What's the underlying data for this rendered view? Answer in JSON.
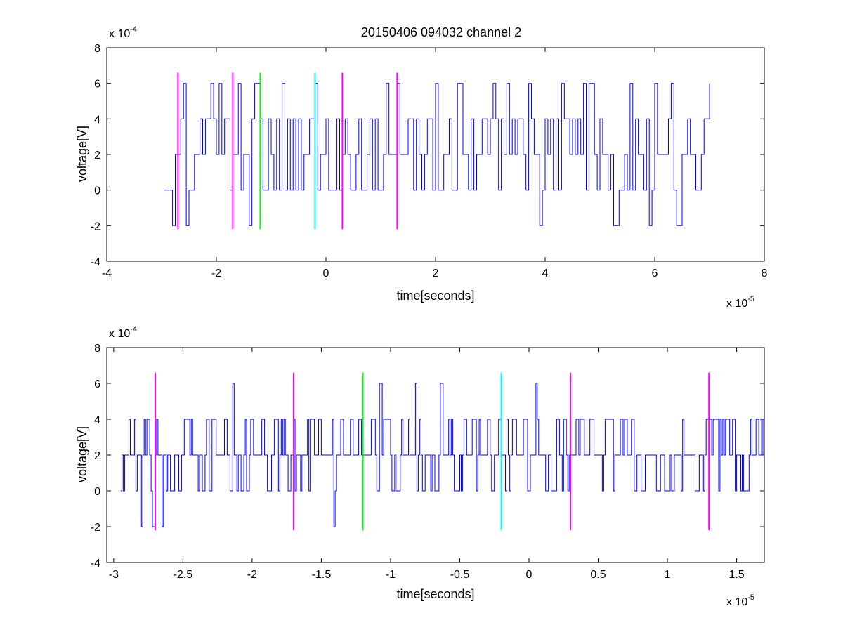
{
  "chart_data": [
    {
      "type": "line",
      "title": "20150406 094032 channel 2",
      "xlabel": "time[seconds]",
      "ylabel": "voltage[V]",
      "x_multiplier": "x 10",
      "x_exponent": "-5",
      "y_multiplier": "x 10",
      "y_exponent": "-4",
      "xlim": [
        -4,
        8
      ],
      "ylim": [
        -4,
        8
      ],
      "x_ticks": [
        "-4",
        "-2",
        "0",
        "2",
        "4",
        "6",
        "8"
      ],
      "y_ticks": [
        "-4",
        "-2",
        "0",
        "2",
        "4",
        "6",
        "8"
      ],
      "grid": false,
      "legend": "none",
      "trace_color": "#0000ff",
      "trace_start": -2.95,
      "trace_end": 7.02,
      "trace_sample_spacing": 0.05,
      "trace_levels": [
        -2,
        0,
        2,
        4,
        6
      ],
      "spikes_up": [
        -2.6,
        -2.1,
        -1.95,
        -1.62,
        -1.28,
        -0.8,
        -0.2,
        1.1,
        1.3,
        2.0,
        2.42,
        3.05,
        3.3,
        3.68,
        4.3,
        4.68,
        4.82,
        5.55,
        6.0,
        6.3,
        7.02
      ],
      "spikes_down": [
        -2.8,
        -2.58,
        -1.4,
        3.9,
        5.27,
        5.88,
        6.42
      ],
      "markers": [
        {
          "x": -2.7,
          "color": "#ff00ff"
        },
        {
          "x": -1.7,
          "color": "#ff00ff"
        },
        {
          "x": -1.2,
          "color": "#00ff00"
        },
        {
          "x": -0.2,
          "color": "#00ffff"
        },
        {
          "x": 0.3,
          "color": "#ff00ff"
        },
        {
          "x": 1.3,
          "color": "#ff00ff"
        }
      ],
      "marker_range": [
        -2.2,
        6.6
      ]
    },
    {
      "type": "line",
      "xlabel": "time[seconds]",
      "ylabel": "voltage[V]",
      "x_multiplier": "x 10",
      "x_exponent": "-5",
      "y_multiplier": "x 10",
      "y_exponent": "-4",
      "xlim": [
        -3.05,
        1.7
      ],
      "ylim": [
        -4,
        8
      ],
      "x_ticks": [
        "-3",
        "-2.5",
        "-2",
        "-1.5",
        "-1",
        "-0.5",
        "0",
        "0.5",
        "1",
        "1.5"
      ],
      "y_ticks": [
        "-4",
        "-2",
        "0",
        "2",
        "4",
        "6",
        "8"
      ],
      "grid": false,
      "legend": "none",
      "trace_color": "#0000ff",
      "trace_start": -2.95,
      "trace_end": 1.7,
      "trace_sample_spacing": 0.01,
      "trace_levels": [
        -2,
        0,
        2,
        4,
        6
      ],
      "spikes_up": [
        -2.14,
        -1.08,
        -0.82,
        -0.64,
        0.05
      ],
      "spikes_down": [
        -2.8,
        -2.72,
        -2.65,
        -1.41
      ],
      "markers": [
        {
          "x": -2.7,
          "color": "#ff00ff"
        },
        {
          "x": -1.7,
          "color": "#ff00ff"
        },
        {
          "x": -1.2,
          "color": "#00ff00"
        },
        {
          "x": -0.2,
          "color": "#00ffff"
        },
        {
          "x": 0.3,
          "color": "#ff00ff"
        },
        {
          "x": 1.3,
          "color": "#ff00ff"
        }
      ],
      "marker_range": [
        -2.2,
        6.6
      ]
    }
  ]
}
